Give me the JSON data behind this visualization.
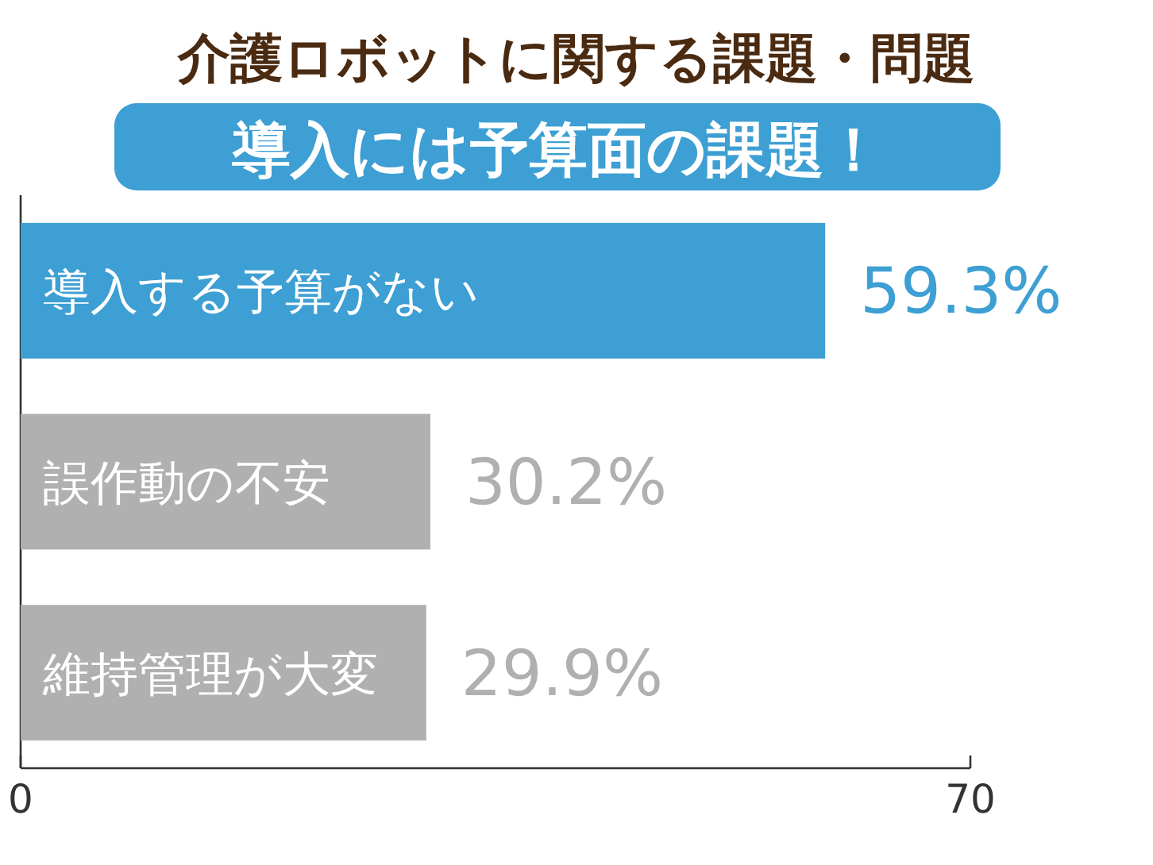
{
  "chart_data": {
    "type": "bar",
    "orientation": "horizontal",
    "title": "介護ロボットに関する課題・問題",
    "subtitle": "導入には予算面の課題！",
    "categories": [
      "導入する予算がない",
      "誤作動の不安",
      "維持管理が大変"
    ],
    "values": [
      59.3,
      30.2,
      29.9
    ],
    "colors": [
      "#3d9fd3",
      "#b0b0b0",
      "#b0b0b0"
    ],
    "value_labels": [
      "59.3%",
      "30.2%",
      "29.9%"
    ],
    "xlim": [
      0,
      70
    ],
    "xticks": [
      0,
      70
    ]
  }
}
